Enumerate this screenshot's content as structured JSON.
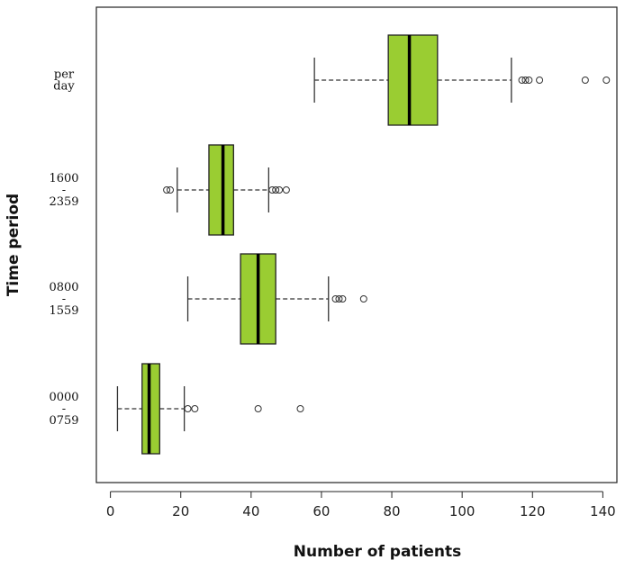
{
  "chart_data": {
    "type": "boxplot",
    "orientation": "horizontal",
    "xlabel": "Number of patients",
    "ylabel": "Time period",
    "xlim": [
      -4,
      144
    ],
    "xticks": [
      0,
      20,
      40,
      60,
      80,
      100,
      120,
      140
    ],
    "box_color": "#9acd32",
    "grid": false,
    "categories": [
      {
        "name": "per day",
        "label_lines": [
          "per",
          "day"
        ],
        "whisker_low": 58,
        "q1": 79,
        "median": 85,
        "q3": 93,
        "whisker_high": 114,
        "outliers": [
          117,
          118,
          119,
          122,
          135,
          141
        ]
      },
      {
        "name": "1600 - 2359",
        "label_lines": [
          "1600",
          "-",
          "2359"
        ],
        "whisker_low": 19,
        "q1": 28,
        "median": 32,
        "q3": 35,
        "whisker_high": 45,
        "outliers": [
          16,
          17,
          46,
          47,
          48,
          50
        ]
      },
      {
        "name": "0800 - 1559",
        "label_lines": [
          "0800",
          "-",
          "1559"
        ],
        "whisker_low": 22,
        "q1": 37,
        "median": 42,
        "q3": 47,
        "whisker_high": 62,
        "outliers": [
          64,
          65,
          66,
          72
        ]
      },
      {
        "name": "0000 - 0759",
        "label_lines": [
          "0000",
          "-",
          "0759"
        ],
        "whisker_low": 2,
        "q1": 9,
        "median": 11,
        "q3": 14,
        "whisker_high": 21,
        "outliers": [
          22,
          24,
          42,
          54
        ]
      }
    ]
  }
}
